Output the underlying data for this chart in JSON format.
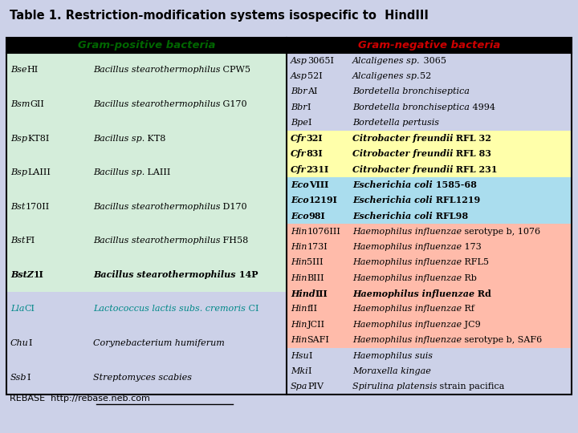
{
  "title": "Table 1. Restriction-modification systems isospecific to  HindIII",
  "bg_color": "#ccd1e8",
  "header_left": "Gram-positive bacteria",
  "header_right": "Gram-negative bacteria",
  "header_left_color": "#006600",
  "header_right_color": "#cc0000",
  "gram_pos_rows": [
    {
      "enz_i": "Bse",
      "enz_n": "HI",
      "org_i": "Bacillus stearothermophilus",
      "org_n": " CPW5",
      "bg": "#d4edda",
      "bold": false,
      "teal": false
    },
    {
      "enz_i": "Bsm",
      "enz_n": "GII",
      "org_i": "Bacillus stearothermophilus",
      "org_n": " G170",
      "bg": "#d4edda",
      "bold": false,
      "teal": false
    },
    {
      "enz_i": "Bsp",
      "enz_n": "KT8I",
      "org_i": "Bacillus sp.",
      "org_n": " KT8",
      "bg": "#d4edda",
      "bold": false,
      "teal": false
    },
    {
      "enz_i": "Bsp",
      "enz_n": "LAIII",
      "org_i": "Bacillus sp.",
      "org_n": " LAIII",
      "bg": "#d4edda",
      "bold": false,
      "teal": false
    },
    {
      "enz_i": "Bst",
      "enz_n": "170II",
      "org_i": "Bacillus stearothermophilus",
      "org_n": " D170",
      "bg": "#d4edda",
      "bold": false,
      "teal": false
    },
    {
      "enz_i": "Bst",
      "enz_n": "FI",
      "org_i": "Bacillus stearothermophilus",
      "org_n": " FH58",
      "bg": "#d4edda",
      "bold": false,
      "teal": false
    },
    {
      "enz_i": "BstZ",
      "enz_n": "1I",
      "org_i": "Bacillus stearothermophilus",
      "org_n": " 14P",
      "bg": "#d4edda",
      "bold": true,
      "teal": false
    },
    {
      "enz_i": "Lla",
      "enz_n": "CI",
      "org_i": "Lactococcus lactis subs. cremoris",
      "org_n": " CI",
      "bg": "#ccd1e8",
      "bold": false,
      "teal": true
    },
    {
      "enz_i": "Chu",
      "enz_n": "I",
      "org_i": "Corynebacterium humiferum",
      "org_n": "",
      "bg": "#ccd1e8",
      "bold": false,
      "teal": false
    },
    {
      "enz_i": "Ssb",
      "enz_n": "I",
      "org_i": "Streptomyces scabies",
      "org_n": "",
      "bg": "#ccd1e8",
      "bold": false,
      "teal": false
    }
  ],
  "gram_neg_rows": [
    {
      "enz_i": "Asp",
      "enz_n": "3065I",
      "org_i": "Alcaligenes sp.",
      "org_n": " 3065",
      "bg": "#ccd1e8",
      "bold": false
    },
    {
      "enz_i": "Asp",
      "enz_n": "52I",
      "org_i": "Alcaligenes sp.",
      "org_n": "52",
      "bg": "#ccd1e8",
      "bold": false
    },
    {
      "enz_i": "Bbr",
      "enz_n": "AI",
      "org_i": "Bordetella bronchiseptica",
      "org_n": "",
      "bg": "#ccd1e8",
      "bold": false
    },
    {
      "enz_i": "Bbr",
      "enz_n": "I",
      "org_i": "Bordetella bronchiseptica",
      "org_n": " 4994",
      "bg": "#ccd1e8",
      "bold": false
    },
    {
      "enz_i": "Bpe",
      "enz_n": "I",
      "org_i": "Bordetella pertusis",
      "org_n": "",
      "bg": "#ccd1e8",
      "bold": false
    },
    {
      "enz_i": "Cfr",
      "enz_n": "32I",
      "org_i": "Citrobacter freundii",
      "org_n": " RFL 32",
      "bg": "#ffffaa",
      "bold": true
    },
    {
      "enz_i": "Cfr",
      "enz_n": "83I",
      "org_i": "Citrobacter freundii",
      "org_n": " RFL 83",
      "bg": "#ffffaa",
      "bold": true
    },
    {
      "enz_i": "Cfr",
      "enz_n": "231I",
      "org_i": "Citrobacter freundii",
      "org_n": " RFL 231",
      "bg": "#ffffaa",
      "bold": true
    },
    {
      "enz_i": "Eco",
      "enz_n": "VIII",
      "org_i": "Escherichia coli",
      "org_n": " 1585-68",
      "bg": "#aaddee",
      "bold": true
    },
    {
      "enz_i": "Eco",
      "enz_n": "1219I",
      "org_i": "Escherichia coli",
      "org_n": " RFL1219",
      "bg": "#aaddee",
      "bold": true
    },
    {
      "enz_i": "Eco",
      "enz_n": "98I",
      "org_i": "Escherichia coli",
      "org_n": " RFL98",
      "bg": "#aaddee",
      "bold": true
    },
    {
      "enz_i": "Hin",
      "enz_n": "1076III",
      "org_i": "Haemophilus influenzae",
      "org_n": " serotype b, 1076",
      "bg": "#ffbbaa",
      "bold": false
    },
    {
      "enz_i": "Hin",
      "enz_n": "173I",
      "org_i": "Haemophilus influenzae",
      "org_n": " 173",
      "bg": "#ffbbaa",
      "bold": false
    },
    {
      "enz_i": "Hin",
      "enz_n": "5III",
      "org_i": "Haemophilus influenzae",
      "org_n": " RFL5",
      "bg": "#ffbbaa",
      "bold": false
    },
    {
      "enz_i": "Hin",
      "enz_n": "BIII",
      "org_i": "Haemophilus influenzae",
      "org_n": " Rb",
      "bg": "#ffbbaa",
      "bold": false
    },
    {
      "enz_i": "Hind",
      "enz_n": "III",
      "org_i": "Haemophilus influenzae",
      "org_n": " Rd",
      "bg": "#ffbbaa",
      "bold": true
    },
    {
      "enz_i": "Hin",
      "enz_n": "fII",
      "org_i": "Haemophilus influenzae",
      "org_n": " Rf",
      "bg": "#ffbbaa",
      "bold": false
    },
    {
      "enz_i": "Hin",
      "enz_n": "JCII",
      "org_i": "Haemophilus influenzae",
      "org_n": " JC9",
      "bg": "#ffbbaa",
      "bold": false
    },
    {
      "enz_i": "Hin",
      "enz_n": "SAFI",
      "org_i": "Haemophilus influenzae",
      "org_n": " serotype b, SAF6",
      "bg": "#ffbbaa",
      "bold": false
    },
    {
      "enz_i": "Hsu",
      "enz_n": "I",
      "org_i": "Haemophilus suis",
      "org_n": "",
      "bg": "#ccd1e8",
      "bold": false
    },
    {
      "enz_i": "Mki",
      "enz_n": "I",
      "org_i": "Moraxella kingae",
      "org_n": "",
      "bg": "#ccd1e8",
      "bold": false
    },
    {
      "enz_i": "Spa",
      "enz_n": "PIV",
      "org_i": "Spirulina platensis",
      "org_n": " strain pacifica",
      "bg": "#ccd1e8",
      "bold": false
    }
  ],
  "footer": "REBASE  http://rebase.neb.com"
}
